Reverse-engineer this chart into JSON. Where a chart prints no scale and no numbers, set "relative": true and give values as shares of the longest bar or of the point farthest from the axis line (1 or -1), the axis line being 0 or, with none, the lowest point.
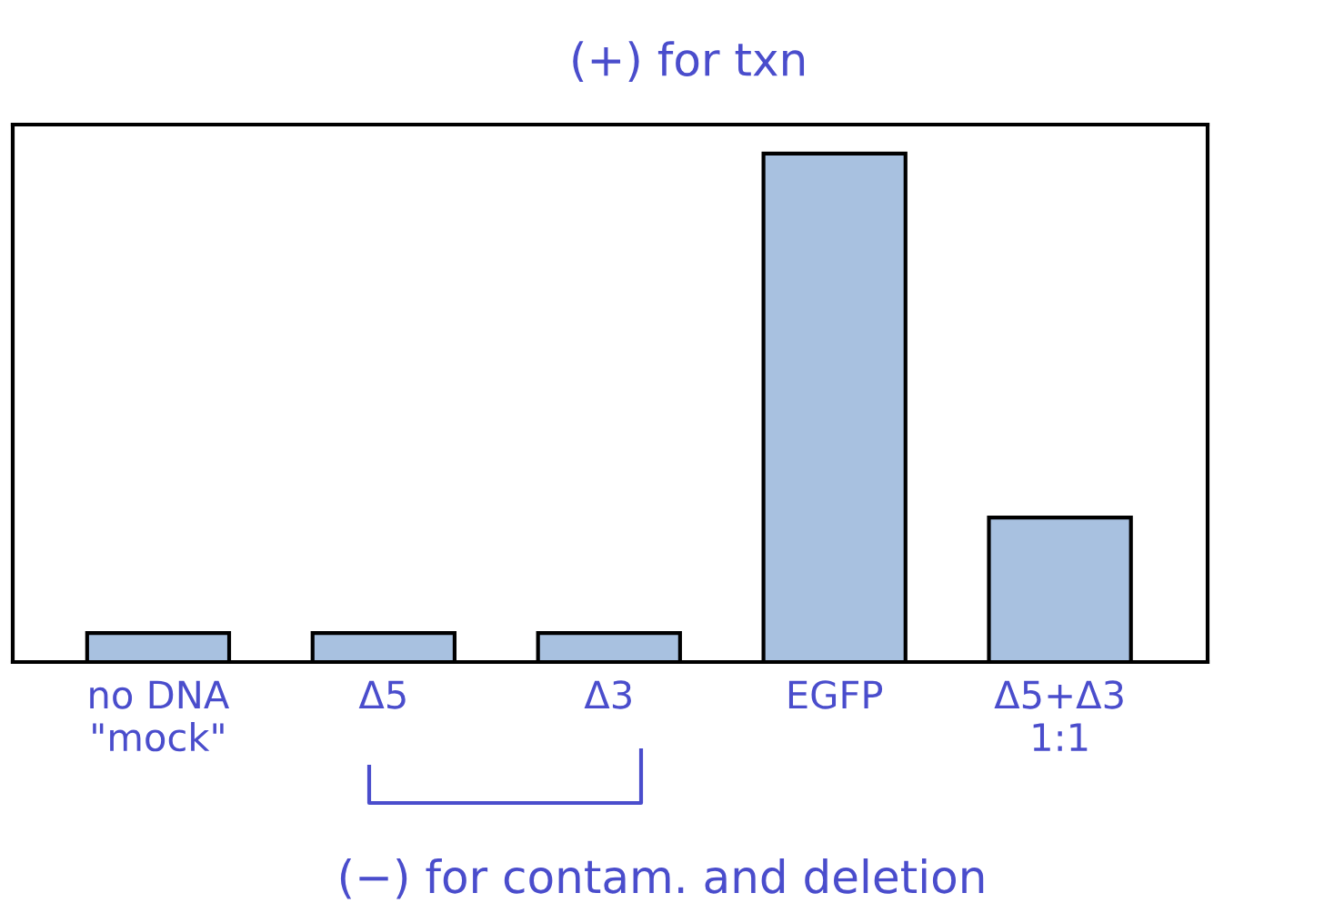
{
  "chart_data": {
    "type": "bar",
    "relative": true,
    "categories": [
      "no DNA\n\"mock\"",
      "Δ5",
      "Δ3",
      "EGFP",
      "Δ5+Δ3\n1:1"
    ],
    "values": [
      0.057,
      0.057,
      0.057,
      1,
      0.284
    ],
    "color": "#a8c1e0",
    "annotations": [
      "(+) for txn",
      "(−) for contam. and deletion"
    ]
  }
}
